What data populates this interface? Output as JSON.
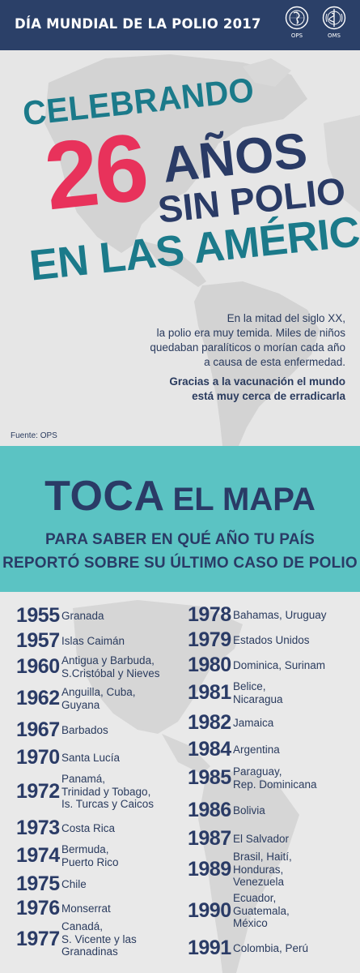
{
  "header": {
    "title": "DÍA MUNDIAL DE LA POLIO 2017",
    "logo_left_label": "OPS",
    "logo_right_label": "OMS"
  },
  "hero": {
    "line1": "CELEBRANDO",
    "number": "26",
    "line2": "AÑOS",
    "line3": "SIN POLIO",
    "line4": "EN LAS AMÉRICAS",
    "intro_lines": [
      "En  la mitad del siglo XX,",
      "la polio era muy temida. Miles de niños",
      "quedaban paralíticos o morían cada año",
      "a causa de esta enfermedad."
    ],
    "emphasis_lines": [
      "Gracias a la vacunación el mundo",
      "está muy cerca de erradicarla"
    ],
    "source": "Fuente: OPS"
  },
  "cta": {
    "big": "TOCA",
    "small": "EL MAPA",
    "sub1": "PARA SABER EN QUÉ AÑO TU PAÍS",
    "sub2": "REPORTÓ SOBRE SU ÚLTIMO CASO DE POLIO"
  },
  "left_list": [
    {
      "year": "1955",
      "country": "Granada"
    },
    {
      "year": "1957",
      "country": "Islas Caimán"
    },
    {
      "year": "1960",
      "country": "Antigua y Barbuda,\nS.Cristóbal y Nieves"
    },
    {
      "year": "1962",
      "country": "Anguilla, Cuba,\nGuyana"
    },
    {
      "year": "1967",
      "country": "Barbados"
    },
    {
      "year": "1970",
      "country": "Santa Lucía"
    },
    {
      "year": "1972",
      "country": "Panamá,\nTrinidad y Tobago,\nIs. Turcas y Caicos"
    },
    {
      "year": "1973",
      "country": "Costa Rica"
    },
    {
      "year": "1974",
      "country": "Bermuda,\nPuerto Rico"
    },
    {
      "year": "1975",
      "country": "Chile"
    },
    {
      "year": "1976",
      "country": "Monserrat"
    },
    {
      "year": "1977",
      "country": "Canadá,\nS. Vicente y las\nGranadinas"
    }
  ],
  "right_list": [
    {
      "year": "1978",
      "country": "Bahamas, Uruguay"
    },
    {
      "year": "1979",
      "country": "Estados Unidos"
    },
    {
      "year": "1980",
      "country": "Dominica, Surinam"
    },
    {
      "year": "1981",
      "country": "Belice,\nNicaragua"
    },
    {
      "year": "1982",
      "country": "Jamaica"
    },
    {
      "year": "1984",
      "country": "Argentina"
    },
    {
      "year": "1985",
      "country": "Paraguay,\nRep. Dominicana"
    },
    {
      "year": "1986",
      "country": "Bolivia"
    },
    {
      "year": "1987",
      "country": "El Salvador"
    },
    {
      "year": "1989",
      "country": "Brasil, Haití,\nHonduras,\nVenezuela"
    },
    {
      "year": "1990",
      "country": "Ecuador,\nGuatemala,\nMéxico"
    },
    {
      "year": "1991",
      "country": "Colombia, Perú"
    }
  ],
  "colors": {
    "header_bg": "#2b4068",
    "teal_band": "#5bc3c3",
    "accent_red": "#e8325b",
    "navy": "#2a3b66",
    "teal_text": "#1b7a8a"
  }
}
